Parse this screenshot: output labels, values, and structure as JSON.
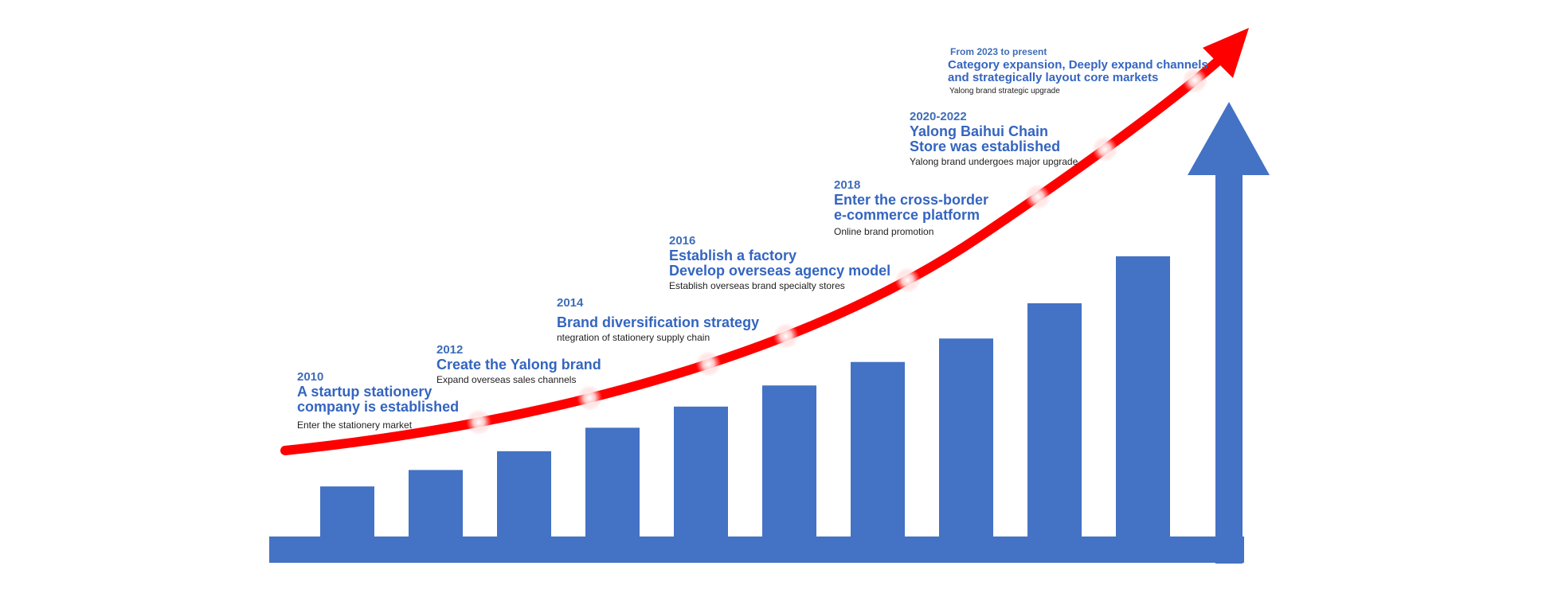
{
  "colors": {
    "bar": "#4472c4",
    "arrow_up": "#4472c4",
    "growth_arrow": "#ff0000",
    "text_accent": "#3465c0"
  },
  "bars": [
    {
      "name": "bar-1",
      "relative_height": 0.22
    },
    {
      "name": "bar-2",
      "relative_height": 0.29
    },
    {
      "name": "bar-3",
      "relative_height": 0.37
    },
    {
      "name": "bar-4",
      "relative_height": 0.47
    },
    {
      "name": "bar-5",
      "relative_height": 0.56
    },
    {
      "name": "bar-6",
      "relative_height": 0.65
    },
    {
      "name": "bar-7",
      "relative_height": 0.75
    },
    {
      "name": "bar-8",
      "relative_height": 0.85
    },
    {
      "name": "bar-9",
      "relative_height": 1.0
    },
    {
      "name": "bar-10",
      "relative_height": 1.2
    }
  ],
  "milestones": [
    {
      "year": "2010",
      "title_line1": "A startup stationery",
      "title_line2": "company is established",
      "desc": "Enter the stationery market"
    },
    {
      "year": "2012",
      "title_line1": "Create the Yalong brand",
      "title_line2": "",
      "desc": "Expand overseas sales channels"
    },
    {
      "year": "2014",
      "title_line1": "Brand diversification strategy",
      "title_line2": "",
      "desc": "ntegration of stationery supply chain"
    },
    {
      "year": "2016",
      "title_line1": "Establish a factory",
      "title_line2": "Develop overseas agency model",
      "desc": "Establish overseas brand specialty stores"
    },
    {
      "year": "2018",
      "title_line1": "Enter the cross-border",
      "title_line2": "e-commerce platform",
      "desc": "Online brand promotion"
    },
    {
      "year": "2020-2022",
      "title_line1": "Yalong Baihui Chain",
      "title_line2": "Store was established",
      "desc": "Yalong brand undergoes major upgrade"
    },
    {
      "year": "From 2023 to present",
      "title_line1": "Category expansion,  Deeply expand channels",
      "title_line2": "and strategically layout core markets",
      "desc": "Yalong brand strategic upgrade"
    }
  ]
}
